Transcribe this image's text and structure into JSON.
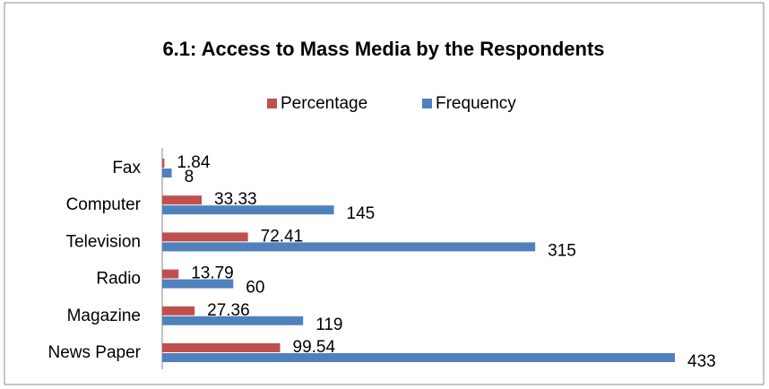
{
  "chart_data": {
    "type": "bar",
    "orientation": "horizontal",
    "title": "6.1: Access to Mass Media by the Respondents",
    "categories": [
      "Fax",
      "Computer",
      "Television",
      "Radio",
      "Magazine",
      "News Paper"
    ],
    "series": [
      {
        "name": "Percentage",
        "color": "#c0504d",
        "values": [
          1.84,
          33.33,
          72.41,
          13.79,
          27.36,
          99.54
        ]
      },
      {
        "name": "Frequency",
        "color": "#4f81bd",
        "values": [
          8,
          145,
          315,
          60,
          119,
          433
        ]
      }
    ],
    "xlim": [
      0,
      450
    ],
    "legend": "top"
  }
}
